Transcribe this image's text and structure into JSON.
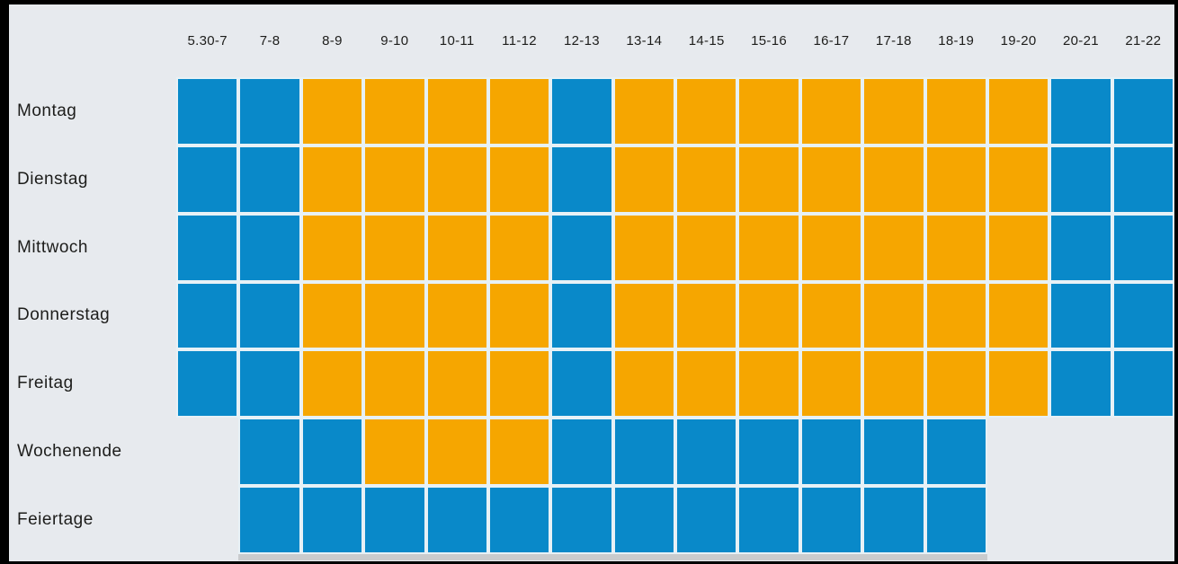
{
  "page": {
    "background_color": "#e7eaee",
    "frame_color": "#000000",
    "text_color": "#1d1d1b",
    "shadow_color": "#c9cbcd",
    "gridline_color": "#e7f1f6"
  },
  "chart_data": {
    "type": "heatmap",
    "title": "",
    "xlabel": "",
    "ylabel": "",
    "legend_position": "none",
    "grid": "off",
    "columns": [
      "5.30-7",
      "7-8",
      "8-9",
      "9-10",
      "10-11",
      "11-12",
      "12-13",
      "13-14",
      "14-15",
      "15-16",
      "16-17",
      "17-18",
      "18-19",
      "19-20",
      "20-21",
      "21-22"
    ],
    "rows": [
      {
        "label": "Montag",
        "cells": [
          "B",
          "B",
          "O",
          "O",
          "O",
          "O",
          "B",
          "O",
          "O",
          "O",
          "O",
          "O",
          "O",
          "O",
          "B",
          "B"
        ]
      },
      {
        "label": "Dienstag",
        "cells": [
          "B",
          "B",
          "O",
          "O",
          "O",
          "O",
          "B",
          "O",
          "O",
          "O",
          "O",
          "O",
          "O",
          "O",
          "B",
          "B"
        ]
      },
      {
        "label": "Mittwoch",
        "cells": [
          "B",
          "B",
          "O",
          "O",
          "O",
          "O",
          "B",
          "O",
          "O",
          "O",
          "O",
          "O",
          "O",
          "O",
          "B",
          "B"
        ]
      },
      {
        "label": "Donnerstag",
        "cells": [
          "B",
          "B",
          "O",
          "O",
          "O",
          "O",
          "B",
          "O",
          "O",
          "O",
          "O",
          "O",
          "O",
          "O",
          "B",
          "B"
        ]
      },
      {
        "label": "Freitag",
        "cells": [
          "B",
          "B",
          "O",
          "O",
          "O",
          "O",
          "B",
          "O",
          "O",
          "O",
          "O",
          "O",
          "O",
          "O",
          "B",
          "B"
        ]
      },
      {
        "label": "Wochenende",
        "cells": [
          "",
          "B",
          "B",
          "O",
          "O",
          "O",
          "B",
          "B",
          "B",
          "B",
          "B",
          "B",
          "B",
          "",
          "",
          ""
        ]
      },
      {
        "label": "Feiertage",
        "cells": [
          "",
          "B",
          "B",
          "B",
          "B",
          "B",
          "B",
          "B",
          "B",
          "B",
          "B",
          "B",
          "B",
          "",
          "",
          ""
        ]
      }
    ],
    "cell_colors": {
      "B": "#0989c9",
      "O": "#f6a600"
    }
  }
}
